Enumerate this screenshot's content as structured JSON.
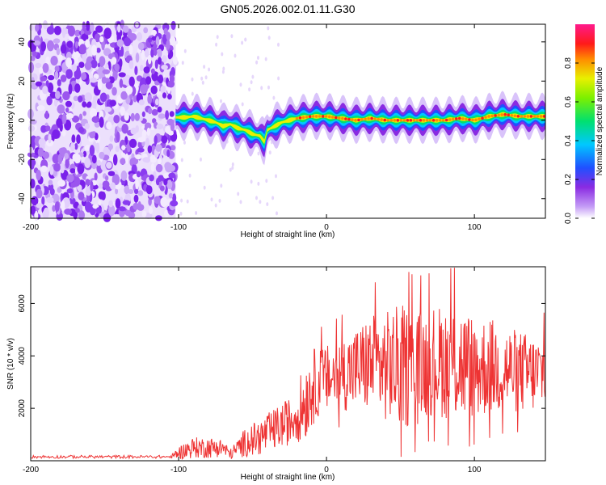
{
  "figure": {
    "title": "GN05.2026.002.01.11.G30"
  },
  "colors": {
    "snr_line": "#ee3333",
    "background": "#ffffff",
    "axis": "#000000",
    "noise": "#8a3cf0"
  },
  "chart_data": [
    {
      "type": "heatmap",
      "title": "",
      "xlabel": "Height of straight line (km)",
      "ylabel": "Frequency (Hz)",
      "xlim": [
        -200,
        148
      ],
      "ylim": [
        -50,
        49
      ],
      "xticks": [
        -200,
        -100,
        0,
        100
      ],
      "yticks": [
        -40,
        -20,
        0,
        20,
        40
      ],
      "noise_region_x": [
        -200,
        -102
      ],
      "ridge": {
        "x": [
          -102,
          -95,
          -90,
          -85,
          -80,
          -75,
          -70,
          -65,
          -60,
          -55,
          -50,
          -45,
          -42,
          -40,
          -35,
          -30,
          -25,
          -20,
          -10,
          0,
          10,
          20,
          30,
          40,
          50,
          60,
          70,
          80,
          90,
          100,
          110,
          120,
          130,
          140,
          148
        ],
        "freq": [
          1.5,
          1.5,
          2,
          1,
          0,
          -1,
          -3,
          -2,
          -4,
          -5,
          -7,
          -8,
          -11,
          -5,
          -3,
          -1,
          0,
          1,
          2,
          2,
          1,
          0,
          1,
          0,
          0,
          0,
          0,
          0,
          1,
          0,
          2,
          3,
          2,
          2,
          2
        ]
      },
      "colorbar": {
        "label": "Normalized spectral amplitude",
        "range": [
          0.0,
          1.0
        ],
        "ticks": [
          "0.0",
          "0.2",
          "0.4",
          "0.6",
          "0.8"
        ]
      }
    },
    {
      "type": "line",
      "title": "",
      "xlabel": "Height of straight line (km)",
      "ylabel": "SNR (10 * v/v)",
      "xlim": [
        -200,
        148
      ],
      "ylim": [
        0,
        7400
      ],
      "xticks": [
        -200,
        -100,
        0,
        100
      ],
      "yticks": [
        2000,
        4000,
        6000
      ],
      "envelope": {
        "x": [
          -200,
          -150,
          -105,
          -100,
          -90,
          -80,
          -70,
          -65,
          -55,
          -45,
          -35,
          -25,
          -20,
          -15,
          -10,
          -5,
          0,
          10,
          20,
          30,
          40,
          50,
          60,
          70,
          80,
          90,
          100,
          110,
          120,
          130,
          140,
          148
        ],
        "base": [
          150,
          150,
          150,
          300,
          500,
          500,
          500,
          250,
          700,
          900,
          1200,
          1500,
          1800,
          2200,
          2800,
          3000,
          3100,
          3300,
          3500,
          3700,
          3600,
          3600,
          3500,
          3800,
          3800,
          3700,
          3500,
          3600,
          3500,
          3400,
          3300,
          3400
        ],
        "amp": [
          60,
          60,
          60,
          250,
          400,
          400,
          350,
          200,
          550,
          700,
          800,
          900,
          1100,
          1500,
          1500,
          1300,
          1300,
          1400,
          1600,
          1900,
          2100,
          2400,
          2200,
          2100,
          2200,
          2300,
          2000,
          1900,
          1700,
          1600,
          1500,
          1400
        ]
      }
    }
  ]
}
